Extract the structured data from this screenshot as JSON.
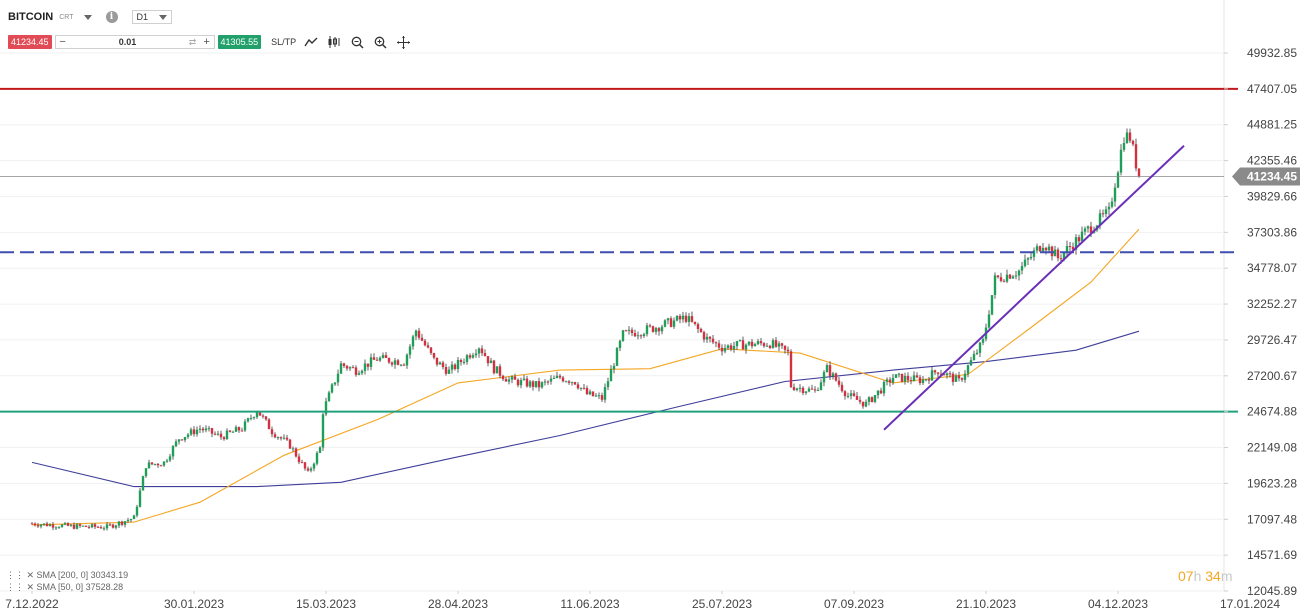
{
  "toolbar": {
    "symbol": "BITCOIN",
    "symbol_tag": "CRT",
    "timeframe": "D1",
    "sell_price": "41234.45",
    "quantity": "0.01",
    "buy_price": "41305.55",
    "sltp_label": "SL/TP",
    "icons": [
      "chart-type-line-icon",
      "chart-type-candle-icon",
      "zoom-out-icon",
      "zoom-in-icon",
      "crosshair-icon"
    ]
  },
  "indicators": {
    "sma200_label": "SMA [200, 0] 30343.19",
    "sma50_label": "SMA [50, 0] 37528.28"
  },
  "timer": {
    "h": "07",
    "h_unit": "h",
    "m": "34",
    "m_unit": "m"
  },
  "chart_data": {
    "type": "candlestick",
    "title": "",
    "x_tick_labels": [
      "7.12.2022",
      "30.01.2023",
      "15.03.2023",
      "28.04.2023",
      "11.06.2023",
      "25.07.2023",
      "07.09.2023",
      "21.10.2023",
      "04.12.2023",
      "17.01.2024"
    ],
    "y_tick_labels": [
      "49932.85",
      "47407.05",
      "44881.25",
      "42355.46",
      "39829.66",
      "37303.86",
      "34778.07",
      "32252.27",
      "29726.47",
      "27200.67",
      "24674.88",
      "22149.08",
      "19623.28",
      "17097.48",
      "14571.69",
      "12045.89"
    ],
    "ylim": [
      12045.89,
      49932.85
    ],
    "current_price": 41234.45,
    "current_price_label": "41234.45",
    "price_path": [
      [
        "2022-12-07",
        16800
      ],
      [
        "2022-12-20",
        16600
      ],
      [
        "2023-01-01",
        16550
      ],
      [
        "2023-01-10",
        17200
      ],
      [
        "2023-01-14",
        20900
      ],
      [
        "2023-01-20",
        21100
      ],
      [
        "2023-01-25",
        22800
      ],
      [
        "2023-02-01",
        23500
      ],
      [
        "2023-02-08",
        22900
      ],
      [
        "2023-02-15",
        23500
      ],
      [
        "2023-02-20",
        24800
      ],
      [
        "2023-02-25",
        23300
      ],
      [
        "2023-03-03",
        22300
      ],
      [
        "2023-03-09",
        20300
      ],
      [
        "2023-03-13",
        22100
      ],
      [
        "2023-03-14",
        24700
      ],
      [
        "2023-03-20",
        28000
      ],
      [
        "2023-03-25",
        27600
      ],
      [
        "2023-04-01",
        28400
      ],
      [
        "2023-04-10",
        28200
      ],
      [
        "2023-04-14",
        30400
      ],
      [
        "2023-04-20",
        28300
      ],
      [
        "2023-04-25",
        27500
      ],
      [
        "2023-05-05",
        29300
      ],
      [
        "2023-05-10",
        27700
      ],
      [
        "2023-05-15",
        26900
      ],
      [
        "2023-05-25",
        26500
      ],
      [
        "2023-06-01",
        27100
      ],
      [
        "2023-06-06",
        26800
      ],
      [
        "2023-06-10",
        25900
      ],
      [
        "2023-06-15",
        25600
      ],
      [
        "2023-06-22",
        30100
      ],
      [
        "2023-07-01",
        30500
      ],
      [
        "2023-07-13",
        31300
      ],
      [
        "2023-07-20",
        29800
      ],
      [
        "2023-07-25",
        29200
      ],
      [
        "2023-08-01",
        29400
      ],
      [
        "2023-08-10",
        29500
      ],
      [
        "2023-08-16",
        28800
      ],
      [
        "2023-08-17",
        26500
      ],
      [
        "2023-08-25",
        26100
      ],
      [
        "2023-08-29",
        27700
      ],
      [
        "2023-09-05",
        25800
      ],
      [
        "2023-09-11",
        25200
      ],
      [
        "2023-09-20",
        27100
      ],
      [
        "2023-09-30",
        26900
      ],
      [
        "2023-10-05",
        27600
      ],
      [
        "2023-10-12",
        26800
      ],
      [
        "2023-10-20",
        29600
      ],
      [
        "2023-10-24",
        34000
      ],
      [
        "2023-11-01",
        34600
      ],
      [
        "2023-11-09",
        36600
      ],
      [
        "2023-11-14",
        35500
      ],
      [
        "2023-11-25",
        37700
      ],
      [
        "2023-12-01",
        38700
      ],
      [
        "2023-12-04",
        41900
      ],
      [
        "2023-12-06",
        44100
      ],
      [
        "2023-12-08",
        44000
      ],
      [
        "2023-12-11",
        41234
      ]
    ],
    "series": [
      {
        "name": "SMA [200, 0]",
        "color": "#3f3f9a",
        "points": [
          [
            "2022-12-07",
            21100
          ],
          [
            "2023-01-10",
            19400
          ],
          [
            "2023-02-20",
            19400
          ],
          [
            "2023-03-20",
            19700
          ],
          [
            "2023-04-28",
            21500
          ],
          [
            "2023-06-01",
            23000
          ],
          [
            "2023-07-10",
            25000
          ],
          [
            "2023-08-15",
            26800
          ],
          [
            "2023-09-20",
            27600
          ],
          [
            "2023-10-21",
            28200
          ],
          [
            "2023-11-20",
            29000
          ],
          [
            "2023-12-11",
            30343.19
          ]
        ]
      },
      {
        "name": "SMA [50, 0]",
        "color": "#f5a623",
        "points": [
          [
            "2022-12-07",
            16700
          ],
          [
            "2023-01-10",
            16900
          ],
          [
            "2023-02-01",
            18300
          ],
          [
            "2023-03-01",
            21600
          ],
          [
            "2023-04-01",
            24100
          ],
          [
            "2023-04-28",
            26700
          ],
          [
            "2023-06-01",
            27600
          ],
          [
            "2023-07-01",
            27700
          ],
          [
            "2023-07-25",
            29100
          ],
          [
            "2023-08-20",
            28800
          ],
          [
            "2023-09-20",
            26700
          ],
          [
            "2023-10-15",
            27300
          ],
          [
            "2023-11-05",
            30600
          ],
          [
            "2023-11-25",
            33800
          ],
          [
            "2023-12-11",
            37528.28
          ]
        ]
      }
    ],
    "annotations": [
      {
        "kind": "horizontal",
        "price": 47407,
        "color": "#c0191c",
        "style": "solid"
      },
      {
        "kind": "horizontal",
        "price": 35900,
        "color": "#3e4fb0",
        "style": "dashed"
      },
      {
        "kind": "horizontal",
        "price": 24680,
        "color": "#22a07e",
        "style": "solid"
      },
      {
        "kind": "horizontal",
        "price": 41234.45,
        "color": "#888888",
        "style": "thin"
      },
      {
        "kind": "trendline",
        "from": [
          "2023-09-17",
          23400
        ],
        "to": [
          "2023-12-26",
          43400
        ],
        "color": "#6a2fb8"
      }
    ]
  }
}
